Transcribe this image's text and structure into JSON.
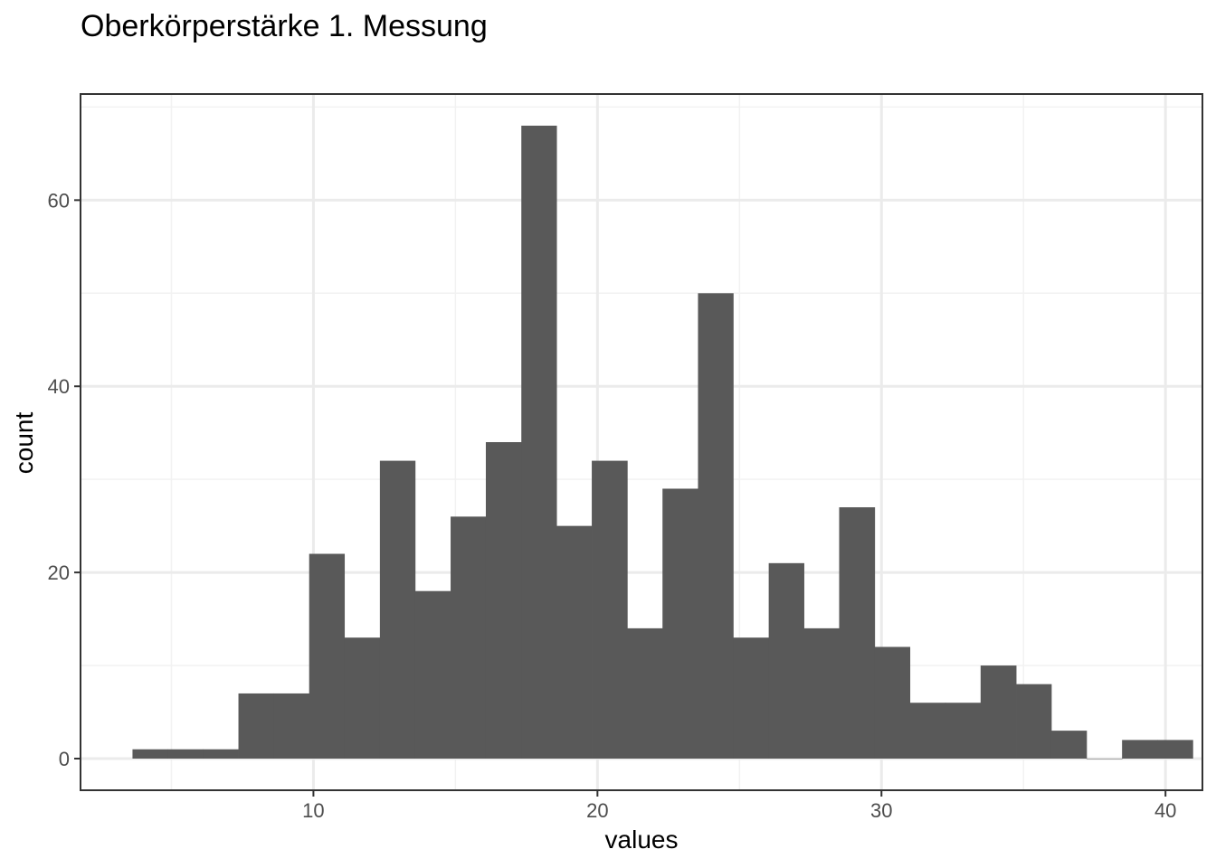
{
  "chart_data": {
    "type": "bar",
    "title": "Oberkörperstärke 1. Messung",
    "xlabel": "values",
    "ylabel": "count",
    "xlim": [
      1.8,
      41.3
    ],
    "ylim": [
      -3.4,
      71.4
    ],
    "x_ticks": [
      10,
      20,
      30,
      40
    ],
    "y_ticks": [
      0,
      20,
      40,
      60
    ],
    "grid": true,
    "bin_width": 1.244,
    "bins": [
      {
        "x0": 3.63,
        "x1": 4.87,
        "count": 1
      },
      {
        "x0": 4.87,
        "x1": 6.12,
        "count": 1
      },
      {
        "x0": 6.12,
        "x1": 7.36,
        "count": 1
      },
      {
        "x0": 7.36,
        "x1": 8.6,
        "count": 7
      },
      {
        "x0": 8.6,
        "x1": 9.85,
        "count": 7
      },
      {
        "x0": 9.85,
        "x1": 11.09,
        "count": 22
      },
      {
        "x0": 11.09,
        "x1": 12.34,
        "count": 13
      },
      {
        "x0": 12.34,
        "x1": 13.58,
        "count": 32
      },
      {
        "x0": 13.58,
        "x1": 14.83,
        "count": 18
      },
      {
        "x0": 14.83,
        "x1": 16.07,
        "count": 26
      },
      {
        "x0": 16.07,
        "x1": 17.32,
        "count": 34
      },
      {
        "x0": 17.32,
        "x1": 18.56,
        "count": 68
      },
      {
        "x0": 18.56,
        "x1": 19.8,
        "count": 25
      },
      {
        "x0": 19.8,
        "x1": 21.05,
        "count": 32
      },
      {
        "x0": 21.05,
        "x1": 22.29,
        "count": 14
      },
      {
        "x0": 22.29,
        "x1": 23.54,
        "count": 29
      },
      {
        "x0": 23.54,
        "x1": 24.78,
        "count": 50
      },
      {
        "x0": 24.78,
        "x1": 26.03,
        "count": 13
      },
      {
        "x0": 26.03,
        "x1": 27.27,
        "count": 21
      },
      {
        "x0": 27.27,
        "x1": 28.51,
        "count": 14
      },
      {
        "x0": 28.51,
        "x1": 29.76,
        "count": 27
      },
      {
        "x0": 29.76,
        "x1": 31.0,
        "count": 12
      },
      {
        "x0": 31.0,
        "x1": 32.25,
        "count": 6
      },
      {
        "x0": 32.25,
        "x1": 33.49,
        "count": 6
      },
      {
        "x0": 33.49,
        "x1": 34.74,
        "count": 10
      },
      {
        "x0": 34.74,
        "x1": 35.98,
        "count": 8
      },
      {
        "x0": 35.98,
        "x1": 37.22,
        "count": 3
      },
      {
        "x0": 37.22,
        "x1": 38.47,
        "count": 0
      },
      {
        "x0": 38.47,
        "x1": 39.71,
        "count": 2
      },
      {
        "x0": 39.71,
        "x1": 40.96,
        "count": 2
      }
    ],
    "colors": {
      "bar": "#595959",
      "grid_major": "#ebebeb",
      "grid_minor": "#f2f2f2",
      "panel_border": "#333333",
      "tick": "#333333"
    }
  }
}
